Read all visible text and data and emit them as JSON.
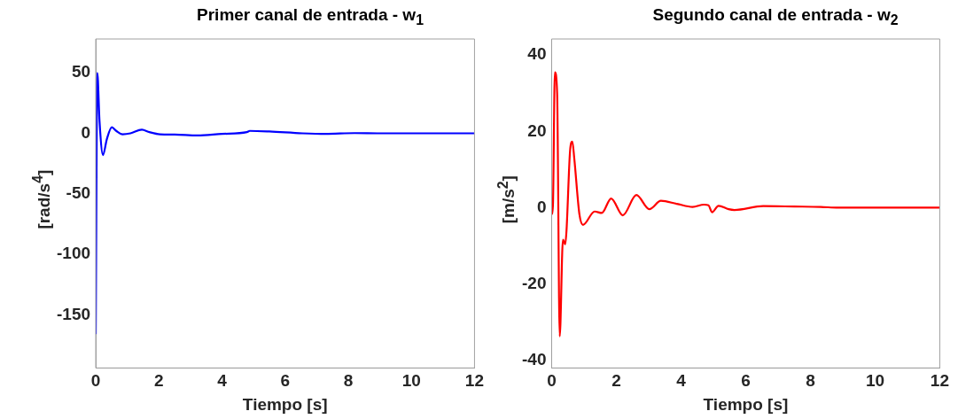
{
  "chart_data": [
    {
      "type": "line",
      "title": "Primer canal de entrada - w$_{1}$",
      "xlabel": "Tiempo [s]",
      "ylabel": "[rad/s$^{4}$]",
      "xlim": [
        0,
        12
      ],
      "xticks": [
        0,
        2,
        4,
        6,
        8,
        10,
        12
      ],
      "ylim": [
        -194,
        78
      ],
      "yticks": [
        -150,
        -100,
        -50,
        0,
        50
      ],
      "grid": false,
      "legend": false,
      "marker": "none",
      "line_style": "solid",
      "series": [
        {
          "color": "#0000ff",
          "x": [
            0,
            0.05,
            0.12,
            0.23,
            0.35,
            0.51,
            0.65,
            0.85,
            1.1,
            1.46,
            1.7,
            2.03,
            2.5,
            3.22,
            4.0,
            4.79,
            4.88,
            5.5,
            6.54,
            7.28,
            8.2,
            9,
            10,
            11,
            12
          ],
          "values": [
            -166,
            50,
            10,
            -18,
            -5,
            5,
            2,
            -0.8,
            0,
            3,
            1,
            -0.8,
            -1,
            -1.8,
            -0.5,
            1,
            2,
            1.5,
            0,
            -0.5,
            0.2,
            0,
            0,
            0,
            0
          ]
        }
      ]
    },
    {
      "type": "line",
      "title": "Segundo canal de entrada - w$_{2}$",
      "xlabel": "Tiempo [s]",
      "ylabel": "[m/s$^{2}$]",
      "xlim": [
        0,
        12
      ],
      "xticks": [
        0,
        2,
        4,
        6,
        8,
        10,
        12
      ],
      "ylim": [
        -42,
        44.2
      ],
      "yticks": [
        -40,
        -20,
        0,
        20,
        40
      ],
      "grid": false,
      "legend": false,
      "marker": "none",
      "line_style": "solid",
      "series": [
        {
          "color": "#ff0000",
          "x": [
            0,
            0.04,
            0.1,
            0.17,
            0.25,
            0.35,
            0.42,
            0.46,
            0.57,
            0.64,
            0.7,
            0.86,
            0.97,
            1.33,
            1.55,
            1.84,
            2.2,
            2.62,
            3.02,
            3.38,
            3.87,
            4.36,
            4.71,
            4.85,
            4.96,
            5.16,
            5.47,
            5.65,
            6.54,
            7.5,
            8.32,
            8.86,
            10,
            11,
            12
          ],
          "values": [
            -1.8,
            0.6,
            35.5,
            30,
            -33.7,
            -8.4,
            -9.6,
            -6,
            14.9,
            17.3,
            12.9,
            -1.8,
            -4.5,
            -1,
            -1.4,
            2.4,
            -2,
            3.3,
            -0.4,
            1.8,
            1,
            0.2,
            0.8,
            0.6,
            -1.2,
            0.5,
            -0.4,
            -0.6,
            0.4,
            0.3,
            0.2,
            0,
            0,
            0,
            0
          ]
        }
      ]
    }
  ]
}
